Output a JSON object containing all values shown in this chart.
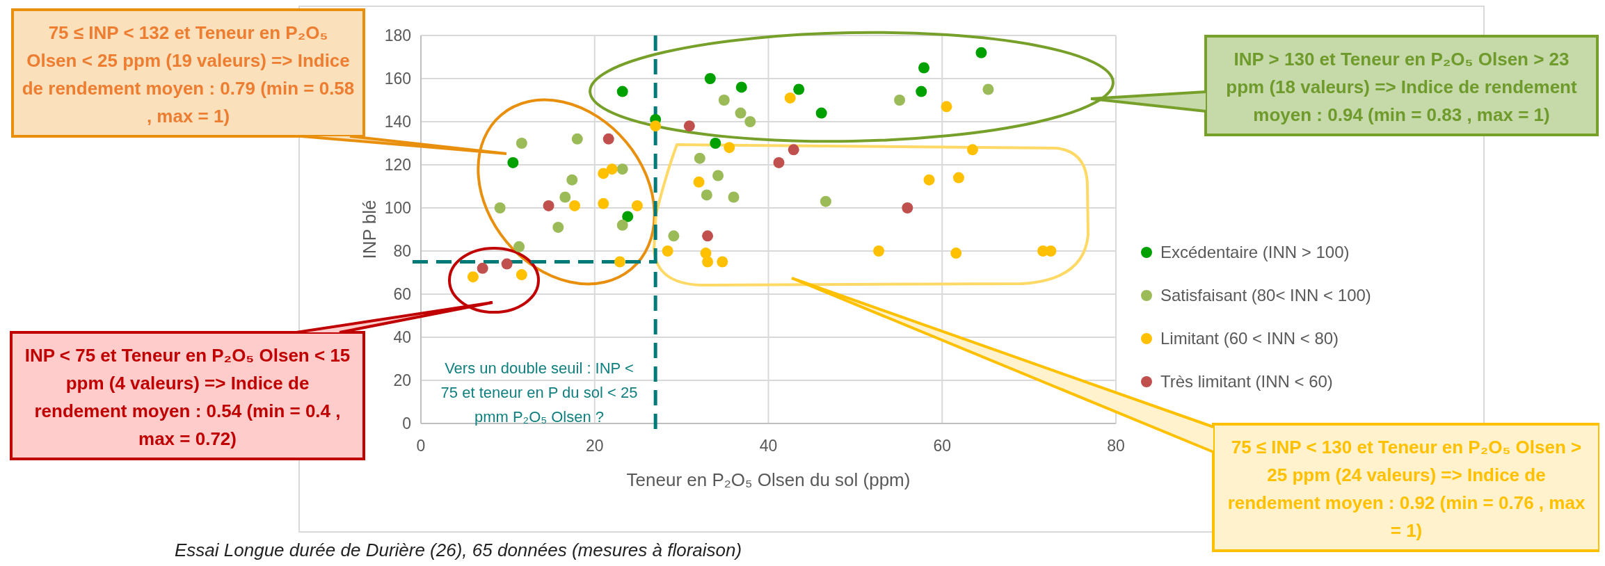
{
  "chart_data": {
    "type": "scatter",
    "xlabel": "Teneur en P₂O₅ Olsen du sol (ppm)",
    "ylabel": "INP blé",
    "xlim": [
      0,
      80
    ],
    "xticks": [
      0,
      20,
      40,
      60,
      80
    ],
    "ylim": [
      0,
      180
    ],
    "yticks": [
      0,
      20,
      40,
      60,
      80,
      100,
      120,
      140,
      160,
      180
    ],
    "grid": true,
    "legend": "right",
    "marker": "circle",
    "series": [
      {
        "name": "Excédentaire (INN > 100)",
        "color": "#00a000",
        "x": [
          10.6,
          23.2,
          23.8,
          27.0,
          33.3,
          36.9,
          43.5,
          46.1,
          57.9,
          57.6,
          64.5,
          33.9
        ],
        "values": [
          121,
          154,
          96,
          141,
          160,
          156,
          155,
          144,
          165,
          154,
          172,
          130
        ]
      },
      {
        "name": "Satisfaisant (80< INN < 100)",
        "color": "#9bbb59",
        "x": [
          11.6,
          18.0,
          23.2,
          17.4,
          16.6,
          9.1,
          23.2,
          15.8,
          11.3,
          34.9,
          36.8,
          37.9,
          55.1,
          65.3,
          32.1,
          34.2,
          32.9,
          36.0,
          46.6,
          29.1
        ],
        "values": [
          130,
          132,
          118,
          113,
          105,
          100,
          92,
          91,
          82,
          150,
          144,
          140,
          150,
          155,
          123,
          115,
          106,
          105,
          103,
          87
        ]
      },
      {
        "name": "Limitant (60 < INN < 80)",
        "color": "#ffc000",
        "x": [
          21.0,
          22.0,
          17.7,
          21.0,
          24.9,
          22.9,
          6.0,
          11.6,
          27.0,
          42.5,
          60.5,
          35.5,
          63.5,
          32.0,
          58.5,
          61.9,
          28.4,
          32.8,
          33.0,
          34.7,
          52.7,
          61.6,
          71.6,
          72.5
        ],
        "values": [
          116,
          118,
          101,
          102,
          101,
          75,
          68,
          69,
          138,
          151,
          147,
          128,
          127,
          112,
          113,
          114,
          80,
          79,
          75,
          75,
          80,
          79,
          80,
          80
        ]
      },
      {
        "name": "Très limitant (INN < 60)",
        "color": "#c0504d",
        "x": [
          21.6,
          14.7,
          7.1,
          9.9,
          30.9,
          41.2,
          42.9,
          56.0,
          33.0
        ],
        "values": [
          132,
          101,
          72,
          74,
          138,
          121,
          127,
          100,
          87
        ]
      }
    ],
    "ref_lines": [
      {
        "axis": "x",
        "value": 27,
        "color": "#007a78",
        "line_style": "dashed"
      },
      {
        "axis": "y",
        "value": 75,
        "color": "#007a78",
        "line_style": "dashed"
      }
    ],
    "annotations": [
      "75 ≤ INP < 132 et Teneur en P₂O₅ Olsen < 25 ppm (19 valeurs) => Indice de rendement moyen : 0.79 (min = 0.58 , max = 1)",
      "INP > 130 et Teneur en P₂O₅ Olsen > 23 ppm (18 valeurs) => Indice de rendement moyen : 0.94 (min = 0.83 , max = 1)",
      "INP < 75 et Teneur en P₂O₅ Olsen < 15 ppm (4 valeurs) => Indice de rendement moyen : 0.54 (min = 0.4 , max = 0.72)",
      "75 ≤ INP < 130 et Teneur en P₂O₅ Olsen > 25 ppm (24 valeurs) => Indice de rendement moyen : 0.92 (min = 0.76 , max = 1)",
      "Vers un double seuil : INP < 75 et teneur en P du sol < 25 pmm P₂O₅ Olsen ?",
      "Essai Longue durée de Durière (26), 65 données (mesures à floraison)"
    ]
  }
}
